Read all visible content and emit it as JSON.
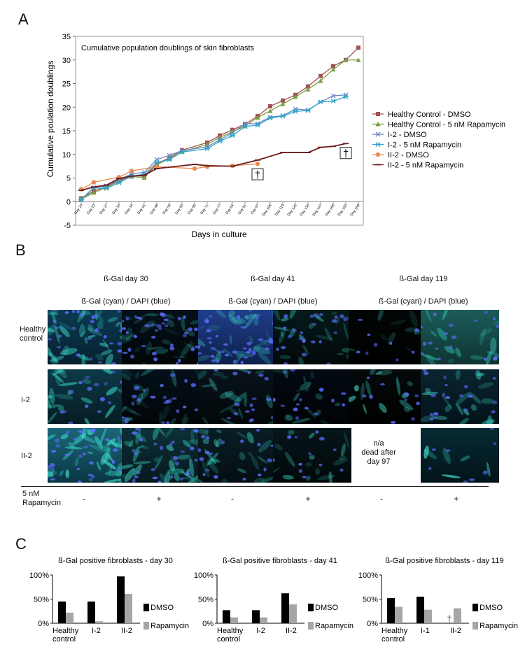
{
  "panels": {
    "a": "A",
    "b": "B",
    "c": "C"
  },
  "panelA": {
    "chart_data": {
      "type": "line",
      "title": "Cumulative population doublings of skin fibroblasts",
      "xlabel": "Days in culture",
      "ylabel": "Cumulative poulation doublings",
      "ylim": [
        -5,
        35
      ],
      "yticks": [
        -5,
        0,
        5,
        10,
        15,
        20,
        25,
        30,
        35
      ],
      "categories": [
        "Day 20",
        "Day 22",
        "Day 27",
        "Day 30",
        "Day 34",
        "Day 41",
        "Day 48",
        "Day 56",
        "Day 63",
        "Day 65",
        "Day 71",
        "Day 77",
        "Day 84",
        "Day 91",
        "Day 97",
        "Day 108",
        "Day 119",
        "Day 128",
        "Day 136",
        "Day 147",
        "Day 168",
        "Day 182",
        "Day 189"
      ],
      "series": [
        {
          "name": "Healthy Control - DMSO",
          "color": "#a05252",
          "marker": "square",
          "values": [
            0.7,
            2.2,
            3.2,
            4.5,
            5.5,
            5.4,
            8.0,
            9.3,
            10.9,
            null,
            12.5,
            14.0,
            15.2,
            16.4,
            18.1,
            20.2,
            21.4,
            22.6,
            24.4,
            26.6,
            28.7,
            30.0,
            32.6
          ]
        },
        {
          "name": "Healthy Control - 5 nM Rapamycin",
          "color": "#7aa142",
          "marker": "triangle",
          "values": [
            0.5,
            1.9,
            3.0,
            4.3,
            5.3,
            5.1,
            7.8,
            9.1,
            10.6,
            null,
            12.1,
            13.6,
            14.8,
            16.0,
            17.8,
            19.2,
            20.7,
            22.2,
            23.8,
            25.6,
            28.0,
            30.0,
            30.0
          ]
        },
        {
          "name": "I-2 - DMSO",
          "color": "#6a86c4",
          "marker": "x",
          "values": [
            0.5,
            3.0,
            3.3,
            4.6,
            5.9,
            6.2,
            8.9,
            9.8,
            10.8,
            null,
            11.6,
            13.1,
            14.6,
            16.5,
            16.5,
            17.9,
            18.2,
            19.6,
            19.4,
            21.1,
            22.4,
            22.6,
            null
          ]
        },
        {
          "name": "I-2 - 5 nM Rapamycin",
          "color": "#2fa7cc",
          "marker": "star",
          "values": [
            0.4,
            2.9,
            2.8,
            4.0,
            5.4,
            5.8,
            8.3,
            8.9,
            10.5,
            null,
            11.2,
            12.8,
            14.0,
            15.9,
            16.2,
            17.7,
            18.1,
            19.1,
            19.3,
            21.1,
            21.3,
            22.2,
            null
          ]
        },
        {
          "name": "II-2 - DMSO",
          "color": "#e88b52",
          "marker": "circle",
          "values": [
            2.6,
            4.1,
            null,
            5.2,
            6.5,
            null,
            7.4,
            null,
            null,
            7.0,
            7.4,
            null,
            7.6,
            null,
            8.0,
            null,
            null,
            null,
            null,
            null,
            null,
            null,
            null
          ]
        },
        {
          "name": "II-2 - 5 nM Rapamycin",
          "color": "#6b1d1d",
          "marker": "dash",
          "values": [
            2.4,
            3.1,
            3.5,
            4.9,
            5.4,
            5.6,
            7.0,
            null,
            null,
            7.9,
            7.6,
            null,
            7.5,
            null,
            8.8,
            null,
            10.4,
            10.4,
            10.4,
            11.5,
            11.7,
            12.3,
            null
          ]
        }
      ],
      "annotations": [
        {
          "text": "†",
          "at_category": "Day 97",
          "value": 5.8
        },
        {
          "text": "†",
          "at_category": "Day 182",
          "value": 10.3
        }
      ]
    }
  },
  "panelB": {
    "columns": [
      {
        "title": "ß-Gal day 30",
        "subtitle": "ß-Gal (cyan) / DAPI (blue)"
      },
      {
        "title": "ß-Gal day 41",
        "subtitle": "ß-Gal (cyan) / DAPI (blue)"
      },
      {
        "title": "ß-Gal day 119",
        "subtitle": "ß-Gal (cyan) / DAPI (blue)"
      }
    ],
    "rows": [
      {
        "label_line1": "Healthy",
        "label_line2": "control"
      },
      {
        "label_line1": "I-2",
        "label_line2": ""
      },
      {
        "label_line1": "II-2",
        "label_line2": ""
      }
    ],
    "na_text": {
      "line1": "n/a",
      "line2": "dead after",
      "line3": "day 97"
    },
    "rapamycin_label": {
      "line1": "5 nM",
      "line2": "Rapamycin"
    },
    "rapamycin_signs": [
      "-",
      "+",
      "-",
      "+",
      "-",
      "+"
    ]
  },
  "panelC": {
    "chart_data": [
      {
        "type": "bar",
        "title": "ß-Gal positive fibroblasts - day 30",
        "categories": [
          "Healthy control",
          "I-2",
          "II-2"
        ],
        "category_lines": [
          [
            "Healthy",
            "control"
          ],
          [
            "I-2"
          ],
          [
            "II-2"
          ]
        ],
        "series": [
          {
            "name": "DMSO",
            "color": "#000000",
            "values": [
              45,
              45,
              97
            ]
          },
          {
            "name": "Rapamycin",
            "color": "#a6a6a6",
            "values": [
              22,
              4,
              61
            ]
          }
        ],
        "ylim": [
          0,
          100
        ],
        "yticks": [
          "0%",
          "50%",
          "100%"
        ],
        "missing_markers": []
      },
      {
        "type": "bar",
        "title": "ß-Gal positive fibroblasts - day 41",
        "categories": [
          "Healthy control",
          "I-2",
          "II-2"
        ],
        "category_lines": [
          [
            "Healthy",
            "control"
          ],
          [
            "I-2"
          ],
          [
            "II-2"
          ]
        ],
        "series": [
          {
            "name": "DMSO",
            "color": "#000000",
            "values": [
              27,
              27,
              62
            ]
          },
          {
            "name": "Rapamycin",
            "color": "#a6a6a6",
            "values": [
              12,
              12,
              39
            ]
          }
        ],
        "ylim": [
          0,
          100
        ],
        "yticks": [
          "0%",
          "50%",
          "100%"
        ],
        "missing_markers": []
      },
      {
        "type": "bar",
        "title": "ß-Gal positive fibroblasts - day 119",
        "categories": [
          "Healthy control",
          "I-1",
          "II-2"
        ],
        "category_lines": [
          [
            "Healthy",
            "control"
          ],
          [
            "I-1"
          ],
          [
            "II-2"
          ]
        ],
        "series": [
          {
            "name": "DMSO",
            "color": "#000000",
            "values": [
              52,
              55,
              null
            ]
          },
          {
            "name": "Rapamycin",
            "color": "#a6a6a6",
            "values": [
              34,
              28,
              31
            ]
          }
        ],
        "ylim": [
          0,
          100
        ],
        "yticks": [
          "0%",
          "50%",
          "100%"
        ],
        "missing_markers": [
          {
            "category": "II-2",
            "series": "DMSO",
            "text": "†"
          }
        ]
      }
    ]
  }
}
